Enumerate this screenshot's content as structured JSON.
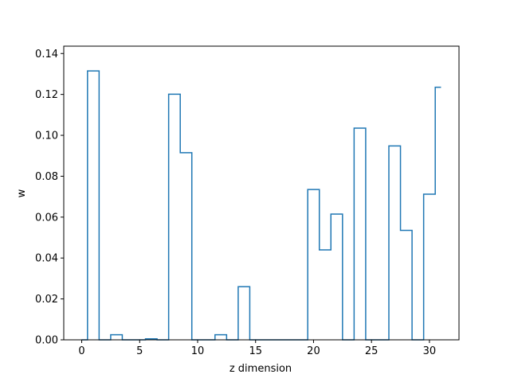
{
  "chart_data": {
    "type": "line",
    "drawstyle": "steps-mid",
    "xlabel": "z dimension",
    "ylabel": "w",
    "xlim": [
      -1.55,
      32.55
    ],
    "ylim": [
      0.0,
      0.1436
    ],
    "xticks": [
      0,
      5,
      10,
      15,
      20,
      25,
      30
    ],
    "yticks": [
      0.0,
      0.02,
      0.04,
      0.06,
      0.08,
      0.1,
      0.12,
      0.14
    ],
    "ytick_labels": [
      "0.00",
      "0.02",
      "0.04",
      "0.06",
      "0.08",
      "0.10",
      "0.12",
      "0.14"
    ],
    "xtick_labels": [
      "0",
      "5",
      "10",
      "15",
      "20",
      "25",
      "30"
    ],
    "grid": false,
    "colors": {
      "series": "#1f77b4",
      "axes": "#000000"
    },
    "series": [
      {
        "x": [
          0,
          1,
          2,
          3,
          4,
          5,
          6,
          7,
          8,
          9,
          10,
          11,
          12,
          13,
          14,
          15,
          16,
          17,
          18,
          19,
          20,
          21,
          22,
          23,
          24,
          25,
          26,
          27,
          28,
          29,
          30,
          31
        ],
        "values": [
          0.0,
          0.1315,
          0.0,
          0.0025,
          0.0,
          0.0,
          0.0005,
          0.0,
          0.1201,
          0.0915,
          0.0,
          0.0,
          0.0025,
          0.0,
          0.026,
          0.0,
          0.0,
          0.0,
          0.0,
          0.0,
          0.0735,
          0.044,
          0.0615,
          0.0,
          0.1035,
          0.0,
          0.0,
          0.0948,
          0.0535,
          0.0,
          0.0712,
          0.1235
        ]
      }
    ]
  }
}
